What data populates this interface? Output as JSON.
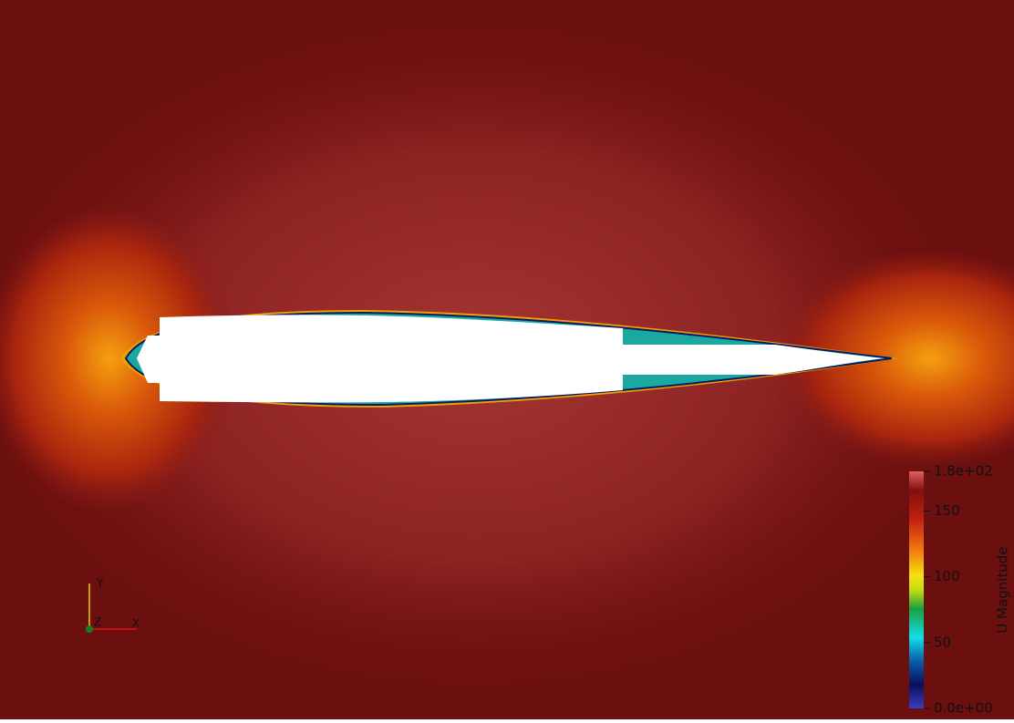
{
  "colorbar": {
    "title": "U Magnitude",
    "ticks": [
      {
        "value": 0,
        "label": "0.0e+00"
      },
      50,
      100,
      150,
      {
        "value": 180,
        "label": "1.8e+02"
      }
    ]
  },
  "axes_triad": {
    "x": "X",
    "y": "Y",
    "z": "Z"
  }
}
